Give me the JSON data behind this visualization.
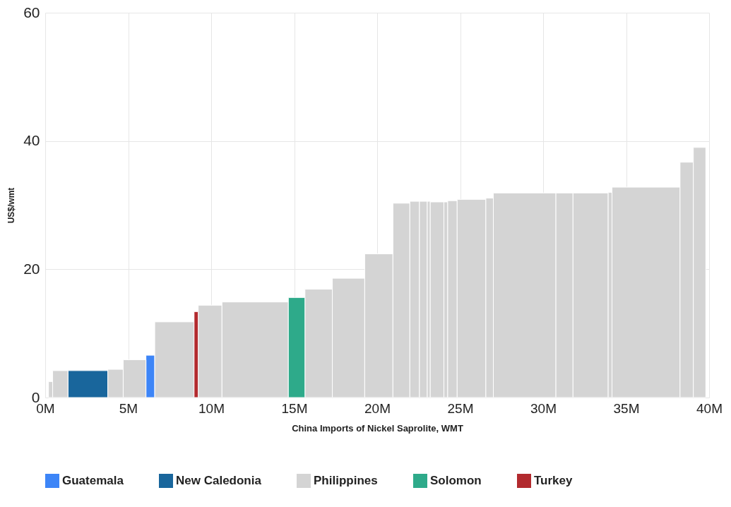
{
  "chart_data": {
    "type": "histogram",
    "xlabel": "China Imports of Nickel Saprolite, WMT",
    "ylabel": "US$/wmt",
    "xlim": [
      0,
      40
    ],
    "xticks": [
      {
        "value": 0,
        "label": "0M"
      },
      {
        "value": 5,
        "label": "5M"
      },
      {
        "value": 10,
        "label": "10M"
      },
      {
        "value": 15,
        "label": "15M"
      },
      {
        "value": 20,
        "label": "20M"
      },
      {
        "value": 25,
        "label": "25M"
      },
      {
        "value": 30,
        "label": "30M"
      },
      {
        "value": 35,
        "label": "35M"
      },
      {
        "value": 40,
        "label": "40M"
      }
    ],
    "ylim": [
      0,
      60
    ],
    "yticks": [
      0,
      20,
      40,
      60
    ],
    "grid": true,
    "legend": "bottom",
    "bins": [
      0.2,
      0.45,
      1.37,
      3.77,
      4.7,
      6.07,
      6.6,
      8.97,
      9.22,
      10.65,
      14.65,
      15.65,
      17.3,
      19.25,
      20.95,
      21.97,
      22.55,
      23.02,
      23.2,
      24.02,
      24.25,
      24.82,
      26.55,
      27.0,
      30.77,
      31.8,
      33.92,
      34.15,
      38.25,
      39.05,
      39.8
    ],
    "series": [
      {
        "name": "Guatemala",
        "color": "#3d85f7",
        "values": [
          null,
          null,
          null,
          null,
          null,
          6.6,
          null,
          null,
          null,
          null,
          null,
          null,
          null,
          null,
          null,
          null,
          null,
          null,
          null,
          null,
          null,
          null,
          null,
          null,
          null,
          null,
          null,
          null,
          null,
          null
        ]
      },
      {
        "name": "New Caledonia",
        "color": "#19669c",
        "values": [
          null,
          null,
          4.2,
          null,
          null,
          null,
          null,
          null,
          null,
          null,
          null,
          null,
          null,
          null,
          null,
          null,
          null,
          null,
          null,
          null,
          null,
          null,
          null,
          null,
          null,
          null,
          null,
          null,
          null,
          null
        ]
      },
      {
        "name": "Philippines",
        "color": "#d4d4d4",
        "values": [
          2.5,
          4.2,
          null,
          4.4,
          5.9,
          null,
          11.8,
          null,
          14.4,
          14.9,
          null,
          16.9,
          18.6,
          22.4,
          30.3,
          30.6,
          30.6,
          30.6,
          30.5,
          30.5,
          30.7,
          30.9,
          31.1,
          31.9,
          31.9,
          31.9,
          32.0,
          32.8,
          36.7,
          39.0
        ]
      },
      {
        "name": "Solomon",
        "color": "#2eaa8a",
        "values": [
          null,
          null,
          null,
          null,
          null,
          null,
          null,
          null,
          null,
          null,
          15.6,
          null,
          null,
          null,
          null,
          null,
          null,
          null,
          null,
          null,
          null,
          null,
          null,
          null,
          null,
          null,
          null,
          null,
          null,
          null
        ]
      },
      {
        "name": "Turkey",
        "color": "#b22a2e",
        "values": [
          null,
          null,
          null,
          null,
          null,
          null,
          null,
          13.4,
          null,
          null,
          null,
          null,
          null,
          null,
          null,
          null,
          null,
          null,
          null,
          null,
          null,
          null,
          null,
          null,
          null,
          null,
          null,
          null,
          null,
          null
        ]
      }
    ]
  }
}
